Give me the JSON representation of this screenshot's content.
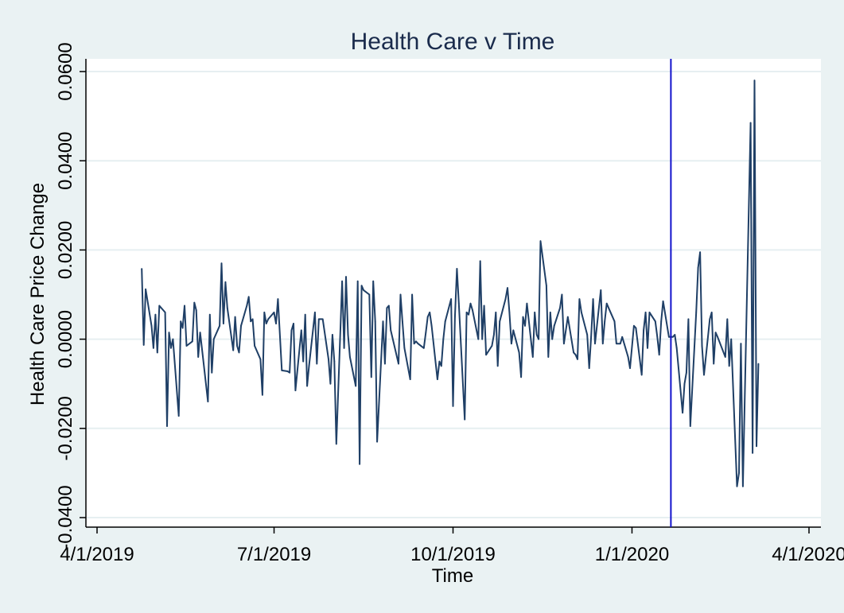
{
  "chart_data": {
    "type": "line",
    "title": "Health Care v Time",
    "xlabel": "Time",
    "ylabel": "Health Care Price Change",
    "xlim": [
      "2019-04-01",
      "2020-04-01"
    ],
    "ylim": [
      -0.04,
      0.06
    ],
    "x_ticks": [
      "4/1/2019",
      "7/1/2019",
      "10/1/2019",
      "1/1/2020",
      "4/1/2020"
    ],
    "x_tick_dates": [
      "2019-04-01",
      "2019-07-01",
      "2019-10-01",
      "2020-01-01",
      "2020-04-01"
    ],
    "y_ticks": [
      "-0.0400",
      "-0.0200",
      "0.0000",
      "0.0200",
      "0.0400",
      "0.0600"
    ],
    "y_tick_values": [
      -0.04,
      -0.02,
      0.0,
      0.02,
      0.04,
      0.06
    ],
    "grid": true,
    "vline": {
      "date": "2020-01-21",
      "color": "#1212cc"
    },
    "colors": {
      "line": "#1f3f66",
      "grid": "#e6eff1",
      "plot_bg": "#ffffff",
      "outer_bg": "#eaf2f3",
      "title": "#1a2b4c"
    },
    "series": [
      {
        "values": [
          [
            "2019-04-24",
            0.0158
          ],
          [
            "2019-04-25",
            -0.0013
          ],
          [
            "2019-04-26",
            0.0112
          ],
          [
            "2019-04-29",
            0.003
          ],
          [
            "2019-04-30",
            -0.002
          ],
          [
            "2019-05-01",
            0.0055
          ],
          [
            "2019-05-02",
            -0.003
          ],
          [
            "2019-05-03",
            0.0075
          ],
          [
            "2019-05-06",
            0.006
          ],
          [
            "2019-05-07",
            -0.0195
          ],
          [
            "2019-05-08",
            0.0015
          ],
          [
            "2019-05-09",
            -0.002
          ],
          [
            "2019-05-10",
            0.0
          ],
          [
            "2019-05-13",
            -0.0172
          ],
          [
            "2019-05-14",
            0.004
          ],
          [
            "2019-05-15",
            0.0025
          ],
          [
            "2019-05-16",
            0.0075
          ],
          [
            "2019-05-17",
            -0.0015
          ],
          [
            "2019-05-20",
            -0.0005
          ],
          [
            "2019-05-21",
            0.0082
          ],
          [
            "2019-05-22",
            0.0065
          ],
          [
            "2019-05-23",
            -0.004
          ],
          [
            "2019-05-24",
            0.0015
          ],
          [
            "2019-05-28",
            -0.014
          ],
          [
            "2019-05-29",
            0.0055
          ],
          [
            "2019-05-30",
            -0.0075
          ],
          [
            "2019-05-31",
            0.0
          ],
          [
            "2019-06-03",
            0.003
          ],
          [
            "2019-06-04",
            0.017
          ],
          [
            "2019-06-05",
            0.0035
          ],
          [
            "2019-06-06",
            0.0128
          ],
          [
            "2019-06-07",
            0.007
          ],
          [
            "2019-06-10",
            -0.0025
          ],
          [
            "2019-06-11",
            0.005
          ],
          [
            "2019-06-12",
            -0.0015
          ],
          [
            "2019-06-13",
            -0.003
          ],
          [
            "2019-06-14",
            0.003
          ],
          [
            "2019-06-17",
            0.0075
          ],
          [
            "2019-06-18",
            0.0095
          ],
          [
            "2019-06-19",
            0.004
          ],
          [
            "2019-06-20",
            0.0045
          ],
          [
            "2019-06-21",
            -0.0015
          ],
          [
            "2019-06-24",
            -0.0045
          ],
          [
            "2019-06-25",
            -0.0125
          ],
          [
            "2019-06-26",
            0.006
          ],
          [
            "2019-06-27",
            0.0035
          ],
          [
            "2019-06-28",
            0.0045
          ],
          [
            "2019-07-01",
            0.006
          ],
          [
            "2019-07-02",
            0.0035
          ],
          [
            "2019-07-03",
            0.009
          ],
          [
            "2019-07-05",
            -0.007
          ],
          [
            "2019-07-08",
            -0.0072
          ],
          [
            "2019-07-09",
            -0.0075
          ],
          [
            "2019-07-10",
            0.002
          ],
          [
            "2019-07-11",
            0.0035
          ],
          [
            "2019-07-12",
            -0.0115
          ],
          [
            "2019-07-15",
            0.002
          ],
          [
            "2019-07-16",
            -0.005
          ],
          [
            "2019-07-17",
            0.0055
          ],
          [
            "2019-07-18",
            -0.0105
          ],
          [
            "2019-07-19",
            -0.006
          ],
          [
            "2019-07-22",
            0.006
          ],
          [
            "2019-07-23",
            -0.0055
          ],
          [
            "2019-07-24",
            0.0045
          ],
          [
            "2019-07-25",
            0.0045
          ],
          [
            "2019-07-26",
            0.0045
          ],
          [
            "2019-07-29",
            -0.0045
          ],
          [
            "2019-07-30",
            -0.01
          ],
          [
            "2019-07-31",
            0.001
          ],
          [
            "2019-08-01",
            -0.005
          ],
          [
            "2019-08-02",
            -0.0235
          ],
          [
            "2019-08-05",
            0.013
          ],
          [
            "2019-08-06",
            -0.002
          ],
          [
            "2019-08-07",
            0.014
          ],
          [
            "2019-08-08",
            0.001
          ],
          [
            "2019-08-09",
            -0.004
          ],
          [
            "2019-08-12",
            -0.0105
          ],
          [
            "2019-08-13",
            0.013
          ],
          [
            "2019-08-14",
            -0.028
          ],
          [
            "2019-08-15",
            0.012
          ],
          [
            "2019-08-16",
            0.011
          ],
          [
            "2019-08-19",
            0.01
          ],
          [
            "2019-08-20",
            -0.0085
          ],
          [
            "2019-08-21",
            0.013
          ],
          [
            "2019-08-22",
            0.004
          ],
          [
            "2019-08-23",
            -0.023
          ],
          [
            "2019-08-26",
            0.004
          ],
          [
            "2019-08-27",
            -0.0055
          ],
          [
            "2019-08-28",
            0.007
          ],
          [
            "2019-08-29",
            0.0075
          ],
          [
            "2019-08-30",
            0.002
          ],
          [
            "2019-09-03",
            -0.0055
          ],
          [
            "2019-09-04",
            0.01
          ],
          [
            "2019-09-05",
            0.004
          ],
          [
            "2019-09-06",
            -0.002
          ],
          [
            "2019-09-09",
            -0.009
          ],
          [
            "2019-09-10",
            0.01
          ],
          [
            "2019-09-11",
            -0.001
          ],
          [
            "2019-09-12",
            -0.0005
          ],
          [
            "2019-09-13",
            -0.001
          ],
          [
            "2019-09-16",
            -0.002
          ],
          [
            "2019-09-17",
            0.0015
          ],
          [
            "2019-09-18",
            0.005
          ],
          [
            "2019-09-19",
            0.006
          ],
          [
            "2019-09-20",
            0.003
          ],
          [
            "2019-09-23",
            -0.009
          ],
          [
            "2019-09-24",
            -0.005
          ],
          [
            "2019-09-25",
            -0.006
          ],
          [
            "2019-09-26",
            0.0
          ],
          [
            "2019-09-27",
            0.004
          ],
          [
            "2019-09-30",
            0.009
          ],
          [
            "2019-10-01",
            -0.015
          ],
          [
            "2019-10-02",
            0.005
          ],
          [
            "2019-10-03",
            0.0158
          ],
          [
            "2019-10-04",
            0.008
          ],
          [
            "2019-10-07",
            -0.018
          ],
          [
            "2019-10-08",
            0.006
          ],
          [
            "2019-10-09",
            0.0055
          ],
          [
            "2019-10-10",
            0.008
          ],
          [
            "2019-10-11",
            0.0065
          ],
          [
            "2019-10-14",
            0.0
          ],
          [
            "2019-10-15",
            0.0175
          ],
          [
            "2019-10-16",
            0.0
          ],
          [
            "2019-10-17",
            0.0075
          ],
          [
            "2019-10-18",
            -0.0035
          ],
          [
            "2019-10-21",
            -0.0015
          ],
          [
            "2019-10-22",
            0.001
          ],
          [
            "2019-10-23",
            0.006
          ],
          [
            "2019-10-24",
            -0.006
          ],
          [
            "2019-10-25",
            0.004
          ],
          [
            "2019-10-28",
            0.009
          ],
          [
            "2019-10-29",
            0.0115
          ],
          [
            "2019-10-30",
            0.006
          ],
          [
            "2019-10-31",
            -0.001
          ],
          [
            "2019-11-01",
            0.002
          ],
          [
            "2019-11-04",
            -0.003
          ],
          [
            "2019-11-05",
            -0.0085
          ],
          [
            "2019-11-06",
            0.005
          ],
          [
            "2019-11-07",
            0.003
          ],
          [
            "2019-11-08",
            0.008
          ],
          [
            "2019-11-11",
            -0.004
          ],
          [
            "2019-11-12",
            0.006
          ],
          [
            "2019-11-13",
            0.001
          ],
          [
            "2019-11-14",
            0.0
          ],
          [
            "2019-11-15",
            0.022
          ],
          [
            "2019-11-18",
            0.012
          ],
          [
            "2019-11-19",
            -0.004
          ],
          [
            "2019-11-20",
            0.006
          ],
          [
            "2019-11-21",
            0.0
          ],
          [
            "2019-11-22",
            0.003
          ],
          [
            "2019-11-25",
            0.007
          ],
          [
            "2019-11-26",
            0.01
          ],
          [
            "2019-11-27",
            -0.001
          ],
          [
            "2019-11-29",
            0.005
          ],
          [
            "2019-12-02",
            -0.003
          ],
          [
            "2019-12-03",
            -0.0035
          ],
          [
            "2019-12-04",
            -0.0045
          ],
          [
            "2019-12-05",
            0.009
          ],
          [
            "2019-12-06",
            0.006
          ],
          [
            "2019-12-09",
            0.001
          ],
          [
            "2019-12-10",
            -0.0065
          ],
          [
            "2019-12-11",
            0.0005
          ],
          [
            "2019-12-12",
            0.009
          ],
          [
            "2019-12-13",
            -0.001
          ],
          [
            "2019-12-16",
            0.011
          ],
          [
            "2019-12-17",
            -0.001
          ],
          [
            "2019-12-18",
            0.004
          ],
          [
            "2019-12-19",
            0.008
          ],
          [
            "2019-12-20",
            0.007
          ],
          [
            "2019-12-23",
            0.004
          ],
          [
            "2019-12-24",
            -0.001
          ],
          [
            "2019-12-26",
            -0.001
          ],
          [
            "2019-12-27",
            0.0005
          ],
          [
            "2019-12-30",
            -0.004
          ],
          [
            "2019-12-31",
            -0.0065
          ],
          [
            "2020-01-02",
            0.003
          ],
          [
            "2020-01-03",
            0.0025
          ],
          [
            "2020-01-06",
            -0.008
          ],
          [
            "2020-01-07",
            0.002
          ],
          [
            "2020-01-08",
            0.006
          ],
          [
            "2020-01-09",
            -0.002
          ],
          [
            "2020-01-10",
            0.006
          ],
          [
            "2020-01-13",
            0.004
          ],
          [
            "2020-01-14",
            0.0005
          ],
          [
            "2020-01-15",
            -0.0035
          ],
          [
            "2020-01-16",
            0.004
          ],
          [
            "2020-01-17",
            0.0085
          ],
          [
            "2020-01-20",
            0.0005
          ],
          [
            "2020-01-21",
            0.0005
          ],
          [
            "2020-01-22",
            0.0005
          ],
          [
            "2020-01-23",
            0.001
          ],
          [
            "2020-01-24",
            -0.002
          ],
          [
            "2020-01-27",
            -0.0165
          ],
          [
            "2020-01-28",
            -0.01
          ],
          [
            "2020-01-29",
            -0.0075
          ],
          [
            "2020-01-30",
            0.0045
          ],
          [
            "2020-01-31",
            -0.0195
          ],
          [
            "2020-02-03",
            0.006
          ],
          [
            "2020-02-04",
            0.016
          ],
          [
            "2020-02-05",
            0.0195
          ],
          [
            "2020-02-06",
            -0.0015
          ],
          [
            "2020-02-07",
            -0.008
          ],
          [
            "2020-02-10",
            0.0045
          ],
          [
            "2020-02-11",
            0.006
          ],
          [
            "2020-02-12",
            -0.0055
          ],
          [
            "2020-02-13",
            0.0015
          ],
          [
            "2020-02-14",
            0.0005
          ],
          [
            "2020-02-18",
            -0.004
          ],
          [
            "2020-02-19",
            0.0045
          ],
          [
            "2020-02-20",
            -0.006
          ],
          [
            "2020-02-21",
            0.0
          ],
          [
            "2020-02-24",
            -0.033
          ],
          [
            "2020-02-25",
            -0.03
          ],
          [
            "2020-02-26",
            -0.001
          ],
          [
            "2020-02-27",
            -0.033
          ],
          [
            "2020-03-02",
            0.0485
          ],
          [
            "2020-03-03",
            -0.0255
          ],
          [
            "2020-03-04",
            0.058
          ],
          [
            "2020-03-05",
            -0.024
          ],
          [
            "2020-03-06",
            -0.0055
          ]
        ]
      }
    ]
  }
}
